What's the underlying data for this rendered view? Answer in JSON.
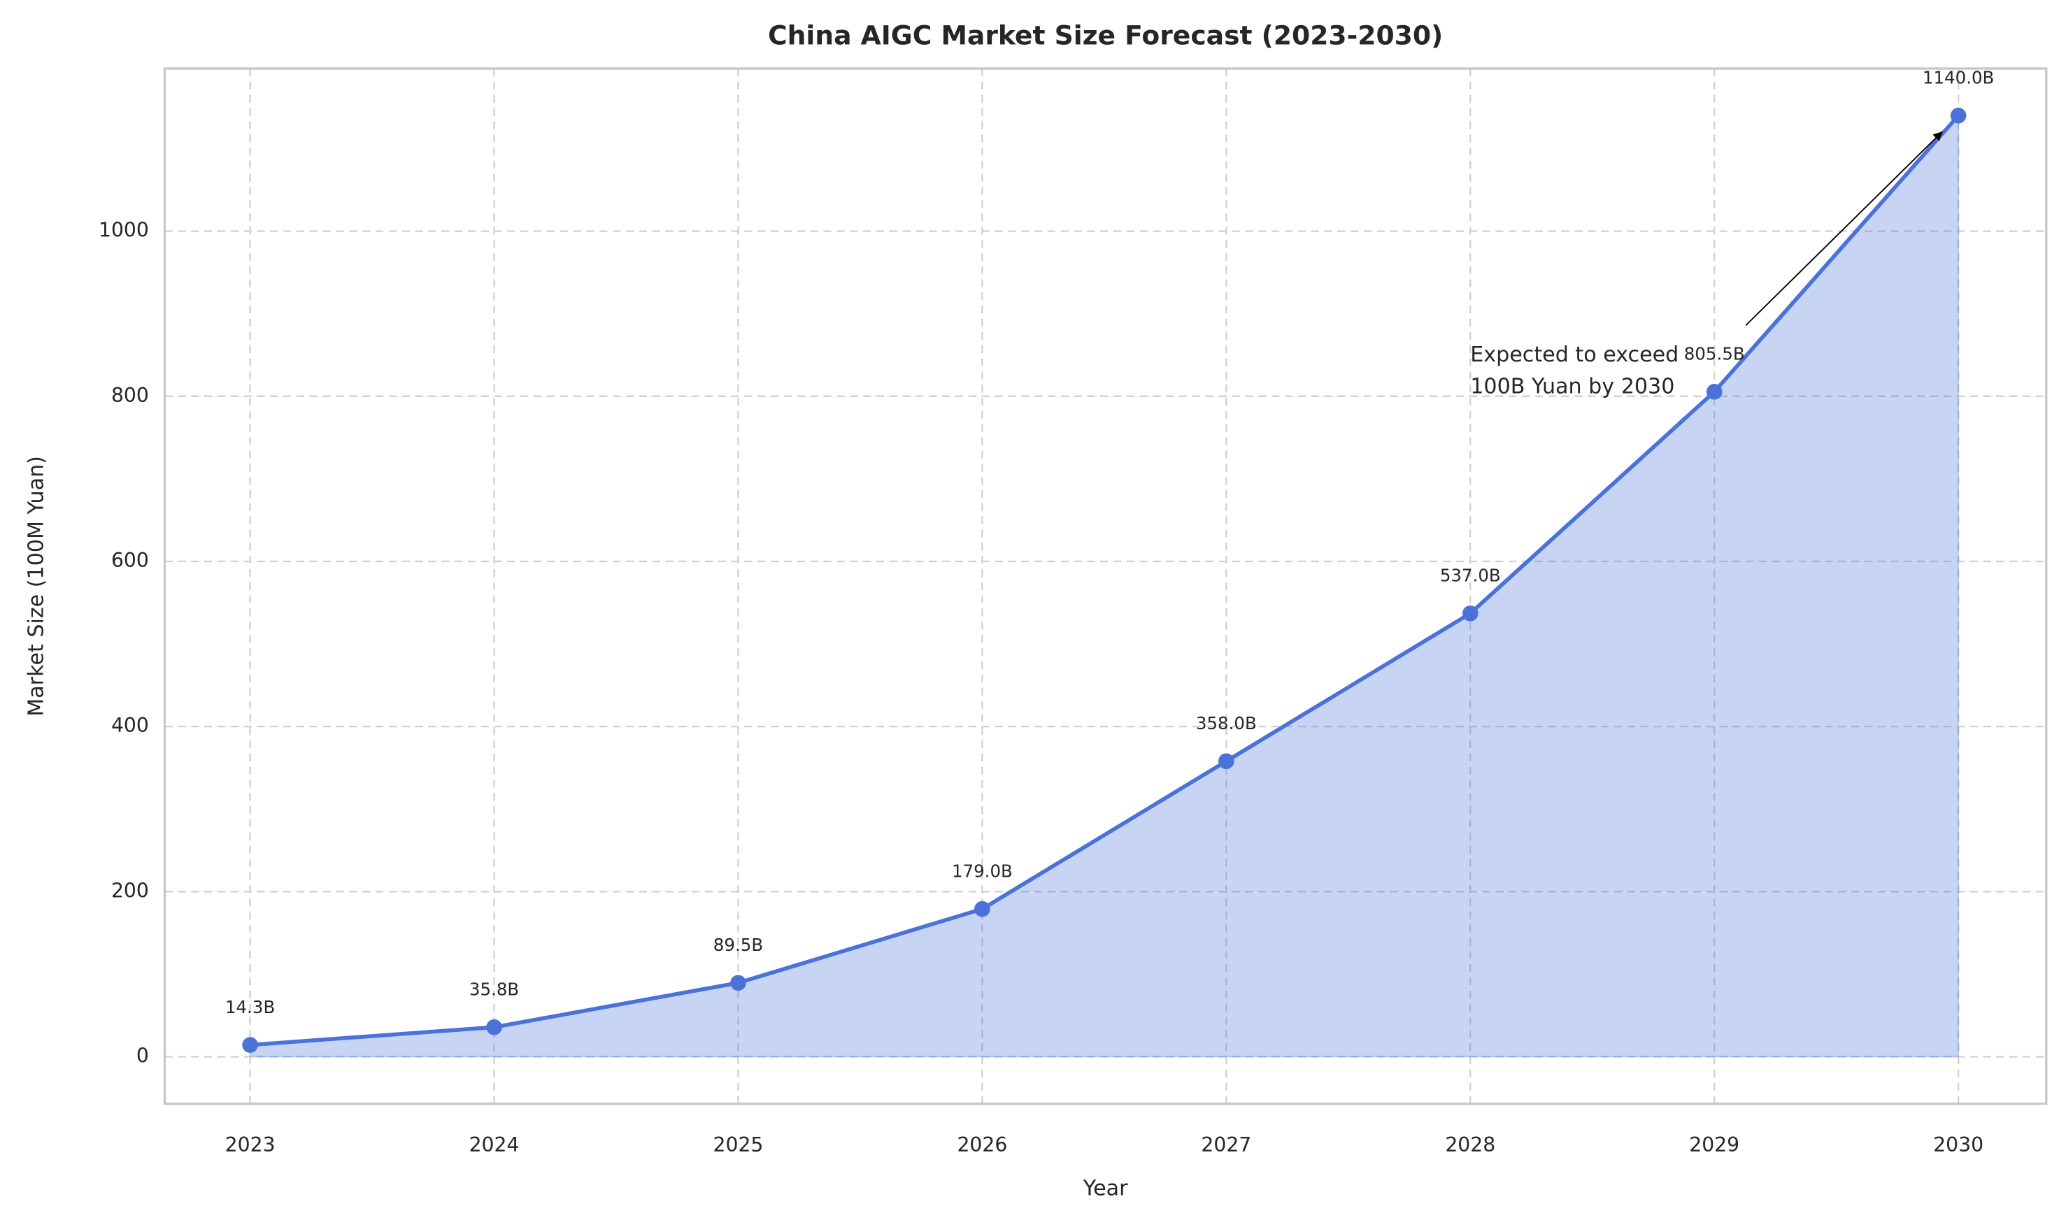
{
  "chart_data": {
    "type": "line",
    "title": "China AIGC Market Size Forecast (2023-2030)",
    "x_label": "Year",
    "y_label": "Market Size (100M Yuan)",
    "x": [
      2023,
      2024,
      2025,
      2026,
      2027,
      2028,
      2029,
      2030
    ],
    "series": [
      {
        "name": "Market Size",
        "color": "#4a72d8",
        "values": [
          14.3,
          35.8,
          89.5,
          179.0,
          358.0,
          537.0,
          805.5,
          1140.0
        ],
        "value_labels": [
          "14.3B",
          "35.8B",
          "89.5B",
          "179.0B",
          "358.0B",
          "537.0B",
          "805.5B",
          "1140.0B"
        ]
      }
    ],
    "xlim": [
      2022.65,
      2030.36
    ],
    "ylim": [
      -57,
      1197
    ],
    "xticks": [
      2023,
      2024,
      2025,
      2026,
      2027,
      2028,
      2029,
      2030
    ],
    "yticks": [
      0,
      200,
      400,
      600,
      800,
      1000
    ],
    "grid": true,
    "fill_area": true,
    "annotations": [
      {
        "lines": [
          "Expected to exceed",
          "100B Yuan by 2030"
        ]
      }
    ]
  }
}
